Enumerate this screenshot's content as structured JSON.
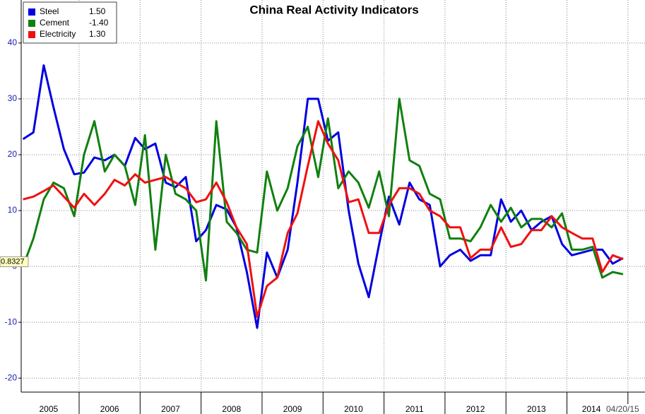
{
  "chart_data": {
    "type": "line",
    "title": "China Real Activity Indicators",
    "x": [
      2005.08,
      2005.25,
      2005.42,
      2005.58,
      2005.75,
      2005.92,
      2006.08,
      2006.25,
      2006.42,
      2006.58,
      2006.75,
      2006.92,
      2007.08,
      2007.25,
      2007.42,
      2007.58,
      2007.75,
      2007.92,
      2008.08,
      2008.25,
      2008.42,
      2008.58,
      2008.75,
      2008.92,
      2009.08,
      2009.25,
      2009.42,
      2009.58,
      2009.75,
      2009.92,
      2010.08,
      2010.25,
      2010.42,
      2010.58,
      2010.75,
      2010.92,
      2011.08,
      2011.25,
      2011.42,
      2011.58,
      2011.75,
      2011.92,
      2012.08,
      2012.25,
      2012.42,
      2012.58,
      2012.75,
      2012.92,
      2013.08,
      2013.25,
      2013.42,
      2013.58,
      2013.75,
      2013.92,
      2014.08,
      2014.25,
      2014.42,
      2014.58,
      2014.75,
      2014.92
    ],
    "series": [
      {
        "name": "Steel",
        "color": "#0000e0",
        "last": {
          "value": 1.5,
          "label": "1.50"
        },
        "values": [
          22.8,
          24,
          36,
          28.5,
          21,
          16.5,
          16.8,
          19.5,
          19,
          20,
          18,
          23,
          21,
          22,
          15,
          14.2,
          16,
          4.5,
          6.5,
          11,
          10.2,
          7,
          -1,
          -11,
          2.5,
          -2,
          3,
          15,
          30,
          30,
          22.5,
          24,
          10,
          0.5,
          -5.5,
          4,
          12.5,
          7.5,
          15,
          12,
          11,
          0,
          2,
          3,
          1,
          2,
          2,
          12,
          8,
          10,
          6.5,
          8,
          9,
          4,
          2,
          2.5,
          3,
          3,
          0.5,
          1.5
        ]
      },
      {
        "name": "Cement",
        "color": "#108010",
        "last": {
          "value": -1.4,
          "label": "-1.40"
        },
        "values": [
          0,
          5,
          12,
          15,
          14,
          9,
          20,
          26,
          17,
          20,
          18,
          11,
          23.5,
          3,
          20,
          13,
          12,
          10,
          -2.5,
          26,
          8,
          6,
          3,
          2.5,
          17,
          10,
          14,
          21.5,
          25,
          16,
          26.5,
          14,
          17,
          15,
          10.5,
          17,
          9,
          30,
          19,
          18,
          13,
          12,
          5,
          5,
          4.5,
          7,
          11,
          8,
          10.5,
          7,
          8.5,
          8.5,
          7,
          9.5,
          3,
          3,
          3.5,
          -2,
          -1,
          -1.4
        ]
      },
      {
        "name": "Electricity",
        "color": "#f01010",
        "last": {
          "value": 1.3,
          "label": "1.30"
        },
        "values": [
          12,
          12.5,
          13.5,
          14.5,
          12.5,
          10.5,
          13,
          11,
          13,
          15.5,
          14.5,
          16.5,
          15,
          15.5,
          16,
          15,
          14,
          11.5,
          12,
          15,
          11.5,
          7,
          4,
          -9,
          -3.5,
          -2,
          6,
          9.5,
          18,
          26,
          22,
          19,
          11.5,
          12,
          6,
          6,
          11,
          14,
          14,
          13,
          10,
          9,
          7,
          7,
          1.5,
          3,
          3,
          7,
          3.5,
          4,
          6.5,
          6.5,
          9,
          7,
          6,
          5,
          5,
          -1,
          2,
          1.3
        ]
      }
    ],
    "xlim": [
      2005.05,
      2015.28
    ],
    "xticks": [
      {
        "value": 2005.5,
        "label": "2005"
      },
      {
        "value": 2006.5,
        "label": "2006"
      },
      {
        "value": 2007.5,
        "label": "2007"
      },
      {
        "value": 2008.5,
        "label": "2008"
      },
      {
        "value": 2009.5,
        "label": "2009"
      },
      {
        "value": 2010.5,
        "label": "2010"
      },
      {
        "value": 2011.5,
        "label": "2011"
      },
      {
        "value": 2012.5,
        "label": "2012"
      },
      {
        "value": 2013.5,
        "label": "2013"
      },
      {
        "value": 2014.4,
        "label": "2014"
      }
    ],
    "xgrid": [
      2006,
      2007,
      2008,
      2009,
      2010,
      2011,
      2012,
      2013,
      2014,
      2015
    ],
    "ylim": [
      -22.5,
      47.7
    ],
    "yticks": [
      -20,
      -10,
      0,
      10,
      20,
      30,
      40
    ],
    "grid": true,
    "annotation": {
      "value": 0.8327,
      "label": "0.8327"
    },
    "date_label": "04/20/15"
  }
}
